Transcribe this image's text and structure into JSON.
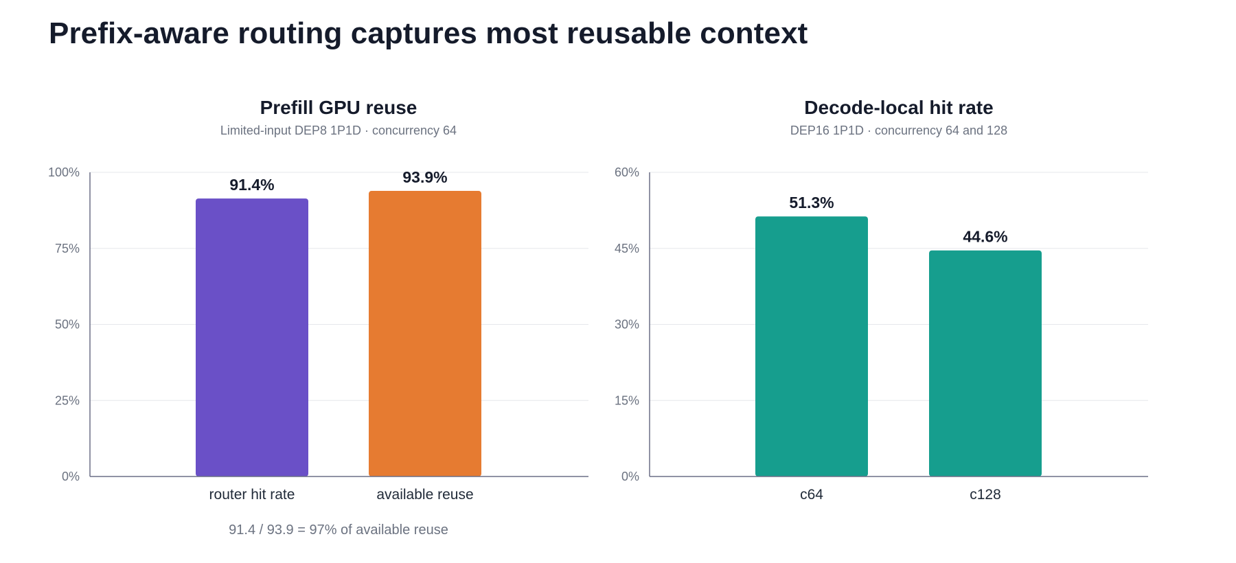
{
  "title": "Prefix-aware routing captures most reusable context",
  "colors": {
    "purple": "#6a50c7",
    "orange": "#e67b31",
    "teal": "#169e8e"
  },
  "chart_data": [
    {
      "type": "bar",
      "title": "Prefill GPU reuse",
      "subtitle": "Limited-input DEP8 1P1D · concurrency 64",
      "categories": [
        "router hit rate",
        "available reuse"
      ],
      "values": [
        91.4,
        93.9
      ],
      "value_labels": [
        "91.4%",
        "93.9%"
      ],
      "bar_colors": [
        "#6a50c7",
        "#e67b31"
      ],
      "ylim": [
        0,
        100
      ],
      "yticks": [
        0,
        25,
        50,
        75,
        100
      ],
      "ytick_labels": [
        "0%",
        "25%",
        "50%",
        "75%",
        "100%"
      ],
      "grid": true,
      "xlabel": "",
      "ylabel": "",
      "footnote": "91.4 / 93.9 = 97% of available reuse"
    },
    {
      "type": "bar",
      "title": "Decode-local hit rate",
      "subtitle": "DEP16 1P1D · concurrency 64 and 128",
      "categories": [
        "c64",
        "c128"
      ],
      "values": [
        51.3,
        44.6
      ],
      "value_labels": [
        "51.3%",
        "44.6%"
      ],
      "bar_colors": [
        "#169e8e",
        "#169e8e"
      ],
      "ylim": [
        0,
        60
      ],
      "yticks": [
        0,
        15,
        30,
        45,
        60
      ],
      "ytick_labels": [
        "0%",
        "15%",
        "30%",
        "45%",
        "60%"
      ],
      "grid": true,
      "xlabel": "",
      "ylabel": "",
      "footnote": ""
    }
  ]
}
